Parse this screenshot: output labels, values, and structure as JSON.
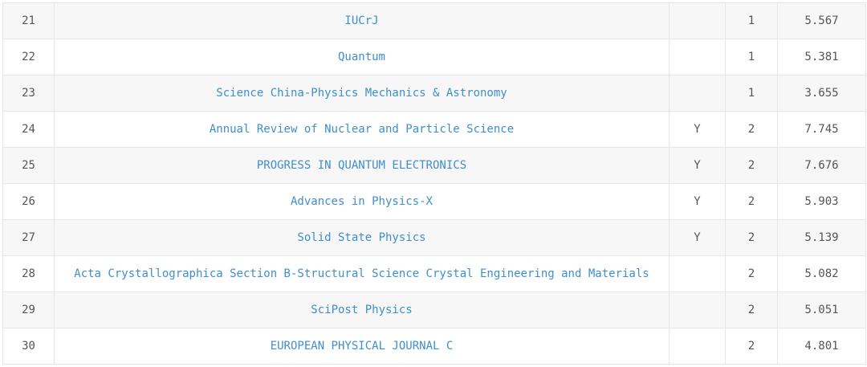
{
  "colors": {
    "link": "#3e8fcc",
    "text": "#555555",
    "stripe": "#f7f7f7",
    "border": "#e6e6e6"
  },
  "rows": [
    {
      "rank": "21",
      "journal": "IUCrJ",
      "flag": "",
      "tier": "1",
      "score": "5.567"
    },
    {
      "rank": "22",
      "journal": "Quantum",
      "flag": "",
      "tier": "1",
      "score": "5.381"
    },
    {
      "rank": "23",
      "journal": "Science China-Physics Mechanics & Astronomy",
      "flag": "",
      "tier": "1",
      "score": "3.655"
    },
    {
      "rank": "24",
      "journal": "Annual Review of Nuclear and Particle Science",
      "flag": "Y",
      "tier": "2",
      "score": "7.745"
    },
    {
      "rank": "25",
      "journal": "PROGRESS IN QUANTUM ELECTRONICS",
      "flag": "Y",
      "tier": "2",
      "score": "7.676"
    },
    {
      "rank": "26",
      "journal": "Advances in Physics-X",
      "flag": "Y",
      "tier": "2",
      "score": "5.903"
    },
    {
      "rank": "27",
      "journal": "Solid State Physics",
      "flag": "Y",
      "tier": "2",
      "score": "5.139"
    },
    {
      "rank": "28",
      "journal": "Acta Crystallographica Section B-Structural Science Crystal Engineering and Materials",
      "flag": "",
      "tier": "2",
      "score": "5.082"
    },
    {
      "rank": "29",
      "journal": "SciPost Physics",
      "flag": "",
      "tier": "2",
      "score": "5.051"
    },
    {
      "rank": "30",
      "journal": "EUROPEAN PHYSICAL JOURNAL C",
      "flag": "",
      "tier": "2",
      "score": "4.801"
    }
  ]
}
